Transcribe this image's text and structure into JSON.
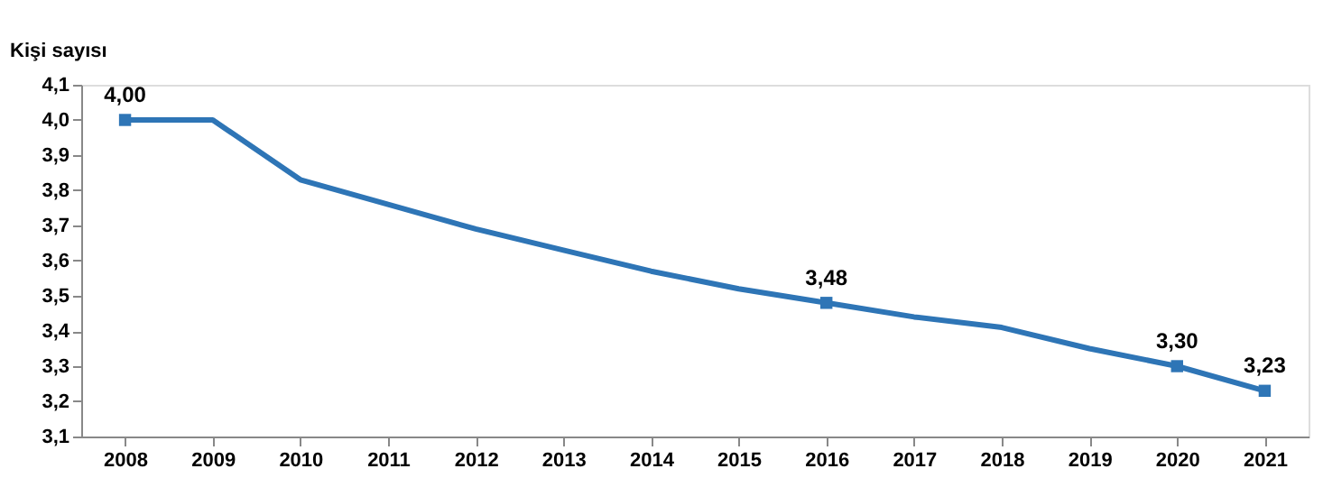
{
  "chart_data": {
    "type": "line",
    "ylabel": "Kişi sayısı",
    "categories": [
      "2008",
      "2009",
      "2010",
      "2011",
      "2012",
      "2013",
      "2014",
      "2015",
      "2016",
      "2017",
      "2018",
      "2019",
      "2020",
      "2021"
    ],
    "series": [
      {
        "color": "#2e75b6",
        "values": [
          4.0,
          4.0,
          3.83,
          3.76,
          3.69,
          3.63,
          3.57,
          3.52,
          3.48,
          3.44,
          3.41,
          3.35,
          3.3,
          3.23
        ],
        "value_labels": [
          "4,00",
          null,
          null,
          null,
          null,
          null,
          null,
          null,
          "3,48",
          null,
          null,
          null,
          "3,30",
          "3,23"
        ]
      }
    ],
    "ylim": [
      3.1,
      4.1
    ],
    "yticks": [
      {
        "value": 3.1,
        "label": "3,1"
      },
      {
        "value": 3.2,
        "label": "3,2"
      },
      {
        "value": 3.3,
        "label": "3,3"
      },
      {
        "value": 3.4,
        "label": "3,4"
      },
      {
        "value": 3.5,
        "label": "3,5"
      },
      {
        "value": 3.6,
        "label": "3,6"
      },
      {
        "value": 3.7,
        "label": "3,7"
      },
      {
        "value": 3.8,
        "label": "3,8"
      },
      {
        "value": 3.9,
        "label": "3,9"
      },
      {
        "value": 4.0,
        "label": "4,0"
      },
      {
        "value": 4.1,
        "label": "4,1"
      }
    ],
    "line_style": "solid",
    "grid": false
  }
}
